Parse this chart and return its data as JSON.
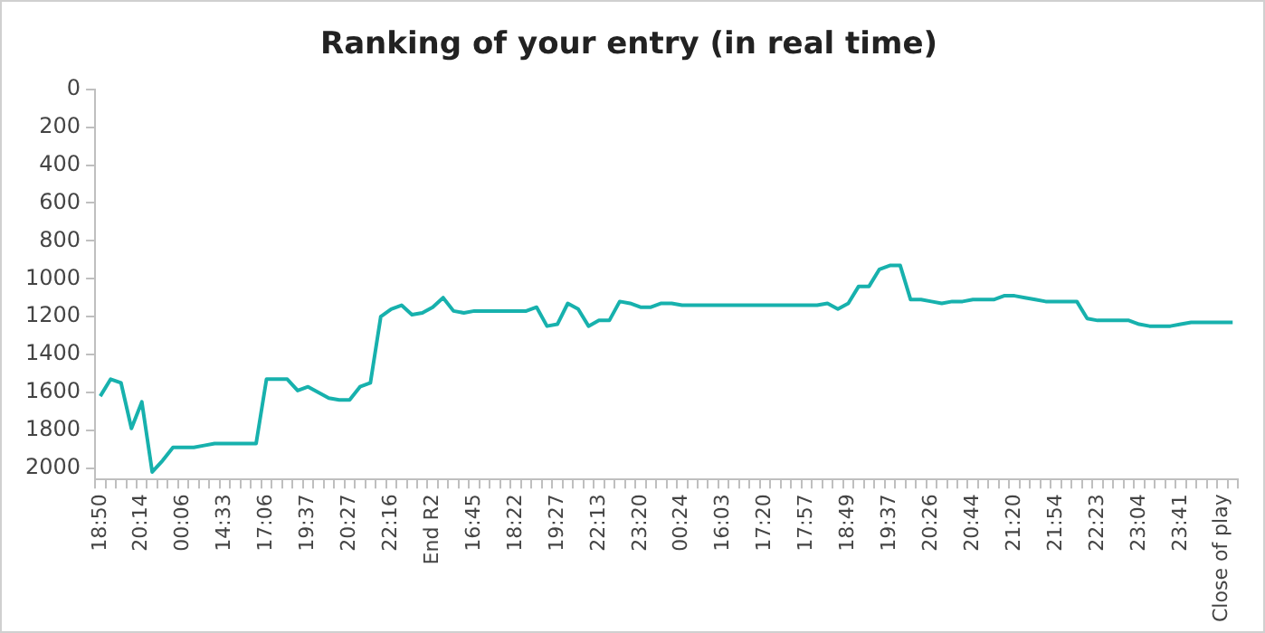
{
  "chart_data": {
    "type": "line",
    "title": "Ranking of your entry (in real time)",
    "categories": [
      "18:50",
      null,
      null,
      null,
      "20:14",
      null,
      null,
      null,
      "00:06",
      null,
      null,
      null,
      "14:33",
      null,
      null,
      null,
      "17:06",
      null,
      null,
      null,
      "19:37",
      null,
      null,
      null,
      "20:27",
      null,
      null,
      null,
      "22:16",
      null,
      null,
      null,
      "End R2",
      null,
      null,
      null,
      "16:45",
      null,
      null,
      null,
      "18:22",
      null,
      null,
      null,
      "19:27",
      null,
      null,
      null,
      "22:13",
      null,
      null,
      null,
      "23:20",
      null,
      null,
      null,
      "00:24",
      null,
      null,
      null,
      "16:03",
      null,
      null,
      null,
      "17:20",
      null,
      null,
      null,
      "17:57",
      null,
      null,
      null,
      "18:49",
      null,
      null,
      null,
      "19:37",
      null,
      null,
      null,
      "20:26",
      null,
      null,
      null,
      "20:44",
      null,
      null,
      null,
      "21:20",
      null,
      null,
      null,
      "21:54",
      null,
      null,
      null,
      "22:23",
      null,
      null,
      null,
      "23:04",
      null,
      null,
      null,
      "23:41",
      null,
      null,
      null,
      "Close of play",
      null
    ],
    "series": [
      {
        "color": "#17b1ad",
        "values": [
          1620,
          1530,
          1550,
          1790,
          1650,
          2020,
          1960,
          1890,
          1890,
          1890,
          1880,
          1870,
          1870,
          1870,
          1870,
          1870,
          1530,
          1530,
          1530,
          1590,
          1570,
          1600,
          1630,
          1640,
          1640,
          1570,
          1550,
          1200,
          1160,
          1140,
          1190,
          1180,
          1150,
          1100,
          1170,
          1180,
          1170,
          1170,
          1170,
          1170,
          1170,
          1170,
          1150,
          1250,
          1240,
          1130,
          1160,
          1250,
          1220,
          1220,
          1120,
          1130,
          1150,
          1150,
          1130,
          1130,
          1140,
          1140,
          1140,
          1140,
          1140,
          1140,
          1140,
          1140,
          1140,
          1140,
          1140,
          1140,
          1140,
          1140,
          1130,
          1160,
          1130,
          1040,
          1040,
          950,
          930,
          930,
          1110,
          1110,
          1120,
          1130,
          1120,
          1120,
          1110,
          1110,
          1110,
          1090,
          1090,
          1100,
          1110,
          1120,
          1120,
          1120,
          1120,
          1210,
          1220,
          1220,
          1220,
          1220,
          1240,
          1250,
          1250,
          1250,
          1240,
          1230,
          1230,
          1230,
          1230,
          1230
        ]
      }
    ],
    "ylim": [
      2060,
      0
    ],
    "yticks": [
      0,
      200,
      400,
      600,
      800,
      1000,
      1200,
      1400,
      1600,
      1800,
      2000
    ],
    "grid": false,
    "legend": false,
    "marker": "none",
    "line_style": "solid"
  }
}
